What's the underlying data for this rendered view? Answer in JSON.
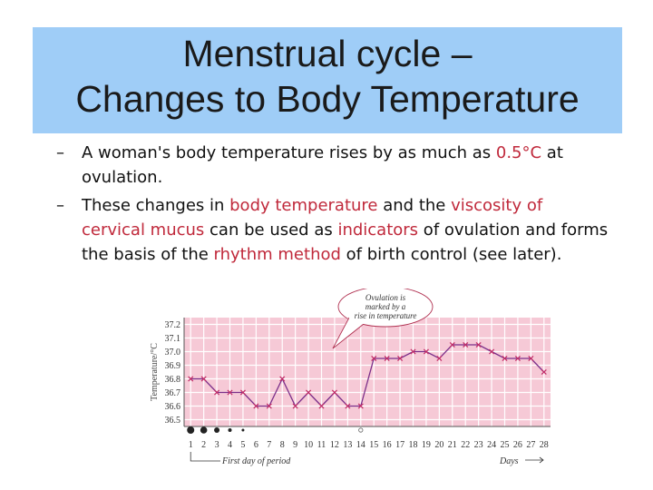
{
  "slide": {
    "title_line1": "Menstrual cycle –",
    "title_line2": "Changes to Body Temperature"
  },
  "bullets": [
    {
      "dash": "–",
      "p1": "A woman's body temperature rises by as much as ",
      "h1": "0.5°C",
      "p2": " at ovulation."
    },
    {
      "dash": "–",
      "p1": "These changes in ",
      "h1": "body temperature",
      "p2": " and the ",
      "h2": "viscosity of cervical mucus",
      "p3": " can be used as ",
      "h3": "indicators",
      "p4": " of ovulation and forms the basis of the ",
      "h4": "rhythm method",
      "p5": " of birth control (see later)."
    }
  ],
  "colors": {
    "title_band": "#9fcdf7",
    "highlight": "#c0293b",
    "chart_bg": "#f6c9d6",
    "chart_line": "#7b2f8a",
    "chart_marker": "#c2306a"
  },
  "chart_data": {
    "type": "line",
    "ylabel": "Temperature/°C",
    "xlabel": "Days",
    "x_note": "First day of period",
    "annotation": "Ovulation is marked by a rise in temperature",
    "x": [
      1,
      2,
      3,
      4,
      5,
      6,
      7,
      8,
      9,
      10,
      11,
      12,
      13,
      14,
      15,
      16,
      17,
      18,
      19,
      20,
      21,
      22,
      23,
      24,
      25,
      26,
      27,
      28
    ],
    "x_tick_labels": [
      "1",
      "2",
      "3",
      "4",
      "5",
      "6",
      "7",
      "8",
      "9",
      "10",
      "11",
      "12",
      "13",
      "14",
      "15",
      "16",
      "17",
      "18",
      "19",
      "20",
      "21",
      "22",
      "23",
      "24",
      "25",
      "26",
      "27",
      "28"
    ],
    "y_ticks": [
      "36.5",
      "36.6",
      "36.7",
      "36.8",
      "36.9",
      "37.0",
      "37.1",
      "37.2"
    ],
    "ylim": [
      36.45,
      37.25
    ],
    "series": [
      {
        "values": [
          36.8,
          36.8,
          36.7,
          36.7,
          36.7,
          36.6,
          36.6,
          36.8,
          36.6,
          36.7,
          36.6,
          36.7,
          36.6,
          36.6,
          36.95,
          36.95,
          36.95,
          37.0,
          37.0,
          36.95,
          37.05,
          37.05,
          37.05,
          37.0,
          36.95,
          36.95,
          36.95,
          36.85
        ]
      }
    ],
    "period_days": [
      1,
      2,
      3,
      4,
      5
    ],
    "ovulation_day": 14,
    "grid": true
  }
}
